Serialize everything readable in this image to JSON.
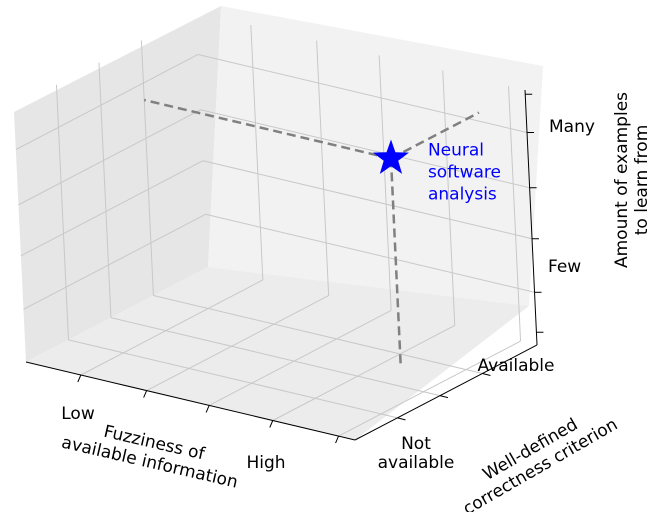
{
  "chart_data": {
    "type": "scatter",
    "projection": "3d",
    "grid": true,
    "x_axis": {
      "label_lines": [
        "Fuzziness of",
        "available information"
      ],
      "ticks": [
        "Low",
        "High"
      ],
      "lim": [
        0,
        3
      ]
    },
    "y_axis": {
      "label_lines": [
        "Well-defined",
        "correctness criterion"
      ],
      "ticks": [
        [
          "Not",
          "available"
        ],
        [
          "Available"
        ]
      ],
      "lim": [
        0,
        3
      ]
    },
    "z_axis": {
      "label_lines": [
        "Amount of examples",
        "to learn from"
      ],
      "ticks": [
        "Few",
        "Many"
      ],
      "lim": [
        0,
        3
      ]
    },
    "points": [
      {
        "x": 2.25,
        "y": 2.1,
        "z": 2.3,
        "marker": "star",
        "color": "#0000ff",
        "annotation_lines": [
          "Neural",
          "software",
          "analysis"
        ]
      }
    ],
    "projection_lines_color": "#808080"
  }
}
